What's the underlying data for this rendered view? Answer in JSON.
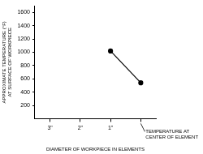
{
  "chart_data": {
    "type": "line",
    "ylabel": [
      "APPROXIMATE TEMPERATURE (°F)",
      "AT SURFACE OF WORKPIECE"
    ],
    "xlabel": "DIAMETER OF WORKPIECE IN ELEMENTS",
    "categories": [
      "3\"",
      "2\"",
      "1\"",
      null
    ],
    "values": [
      null,
      null,
      1020,
      540
    ],
    "color": "#000000",
    "marker": "circle",
    "line_style": "solid",
    "ylim": [
      0,
      1700
    ],
    "yticks": [
      200,
      400,
      600,
      800,
      1000,
      1200,
      1400,
      1600
    ],
    "grid": false,
    "legend": false,
    "annotations": [
      {
        "text": [
          "TEMPERATURE AT",
          "CENTER OF ELEMENT"
        ],
        "category_index": 3
      }
    ]
  }
}
